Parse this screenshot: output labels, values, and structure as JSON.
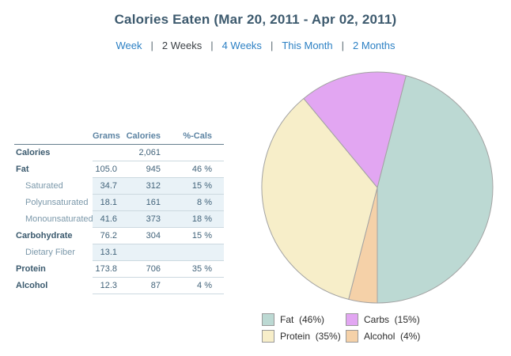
{
  "header": {
    "title": "Calories Eaten (Mar 20, 2011 - Apr 02, 2011)"
  },
  "nav": {
    "separator": "|",
    "items": [
      {
        "label": "Week",
        "link": true
      },
      {
        "label": "2 Weeks",
        "link": false
      },
      {
        "label": "4 Weeks",
        "link": true
      },
      {
        "label": "This Month",
        "link": true
      },
      {
        "label": "2 Months",
        "link": true
      }
    ]
  },
  "table": {
    "columns": [
      "",
      "Grams",
      "Calories",
      "%-Cals"
    ],
    "rows": [
      {
        "label": "Calories",
        "style": "bold",
        "grams": "",
        "calories": "2,061",
        "pcals": ""
      },
      {
        "label": "Fat",
        "style": "bold",
        "grams": "105.0",
        "calories": "945",
        "pcals": "46 %"
      },
      {
        "label": "Saturated",
        "style": "sub",
        "grams": "34.7",
        "calories": "312",
        "pcals": "15 %"
      },
      {
        "label": "Polyunsaturated",
        "style": "sub",
        "grams": "18.1",
        "calories": "161",
        "pcals": "8 %"
      },
      {
        "label": "Monounsaturated",
        "style": "sub",
        "grams": "41.6",
        "calories": "373",
        "pcals": "18 %"
      },
      {
        "label": "Carbohydrate",
        "style": "bold",
        "grams": "76.2",
        "calories": "304",
        "pcals": "15 %"
      },
      {
        "label": "Dietary Fiber",
        "style": "sub",
        "grams": "13.1",
        "calories": "",
        "pcals": ""
      },
      {
        "label": "Protein",
        "style": "bold",
        "grams": "173.8",
        "calories": "706",
        "pcals": "35 %"
      },
      {
        "label": "Alcohol",
        "style": "bold",
        "grams": "12.3",
        "calories": "87",
        "pcals": "4 %"
      }
    ]
  },
  "chart_data": {
    "type": "pie",
    "title": "Calories Eaten (Mar 20, 2011 - Apr 02, 2011)",
    "series": [
      {
        "name": "Fat",
        "value": 46,
        "color": "#bcd9d3"
      },
      {
        "name": "Alcohol",
        "value": 4,
        "color": "#f5d1a8"
      },
      {
        "name": "Protein",
        "value": 35,
        "color": "#f7eec9"
      },
      {
        "name": "Carbs",
        "value": 15,
        "color": "#e2a6f2"
      }
    ],
    "legend_order": [
      "Fat",
      "Carbs",
      "Protein",
      "Alcohol"
    ],
    "start_angle_deg": 14.4,
    "stroke_color": "#a3a3a3",
    "legend_position": "bottom-right"
  },
  "colors": {
    "title": "#3d5a6e",
    "link": "#2c80c4",
    "table_header": "#5d84a3",
    "sub_row_bg": "#e9f2f7"
  }
}
